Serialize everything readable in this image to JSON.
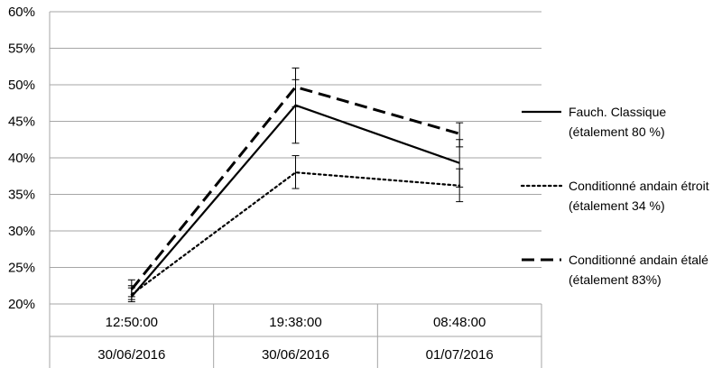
{
  "chart_data": {
    "type": "line",
    "categories": [
      [
        "12:50:00",
        "30/06/2016"
      ],
      [
        "19:38:00",
        "30/06/2016"
      ],
      [
        "08:48:00",
        "01/07/2016"
      ]
    ],
    "y_ticks": [
      "20%",
      "25%",
      "30%",
      "35%",
      "40%",
      "45%",
      "50%",
      "55%",
      "60%"
    ],
    "ylim": [
      20,
      60
    ],
    "y_unit": "%",
    "grid": true,
    "legend_position": "right",
    "series": [
      {
        "name": "Fauch. Classique",
        "name_line2": "(étalement 80 %)",
        "style": "solid",
        "values": [
          21.0,
          47.2,
          39.3
        ],
        "error": [
          [
            20.3,
            22.2
          ],
          [
            42.0,
            50.7
          ],
          [
            36.0,
            42.5
          ]
        ]
      },
      {
        "name": "Conditionné andain étroit",
        "name_line2": "(étalement 34 %)",
        "style": "dotted",
        "values": [
          21.3,
          38.0,
          36.2
        ],
        "error": [
          [
            20.6,
            22.5
          ],
          [
            35.8,
            40.3
          ],
          [
            34.0,
            38.5
          ]
        ]
      },
      {
        "name": "Conditionné andain étalé",
        "name_line2": "(étalement 83%)",
        "style": "dashed",
        "values": [
          22.0,
          49.7,
          43.3
        ],
        "error": [
          [
            21.0,
            23.3
          ],
          [
            47.0,
            52.3
          ],
          [
            41.5,
            44.8
          ]
        ]
      }
    ],
    "color": "#000000",
    "grid_color": "#a6a6a6"
  }
}
